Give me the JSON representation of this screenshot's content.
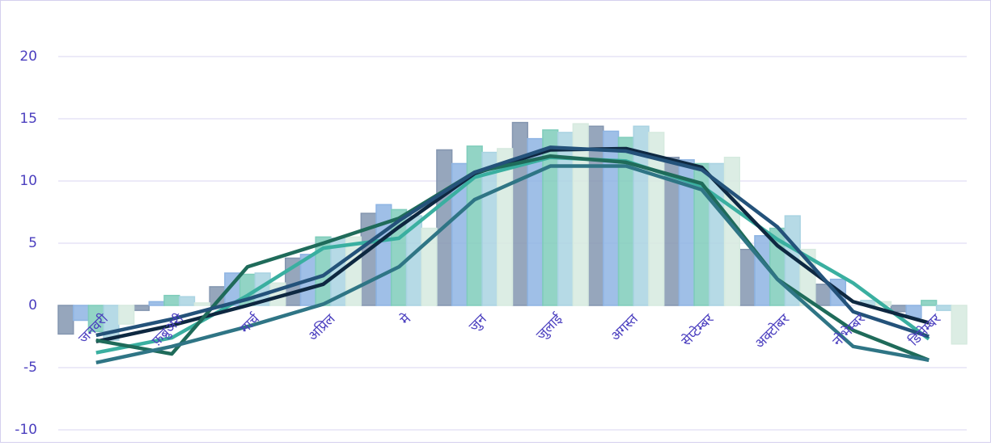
{
  "chart_data": {
    "type": "bar",
    "categories": [
      "जनवरी",
      "फ़ब्रुअरी",
      "मार्च",
      "अप्रिल",
      "मे",
      "जुन",
      "जुलाई",
      "अगस्त",
      "सेप्टेम्बर",
      "अक्टोबर",
      "नोभेम्बर",
      "डिसेम्बर"
    ],
    "ylim": [
      -10,
      20
    ],
    "yticks": [
      -10,
      -5,
      0,
      5,
      10,
      15,
      20
    ],
    "grid": true,
    "series": [
      {
        "type": "bar",
        "color": "#8496b0",
        "values": [
          -2.3,
          -0.4,
          1.5,
          3.8,
          7.4,
          12.5,
          14.7,
          14.4,
          11.9,
          4.5,
          1.7,
          -0.5
        ]
      },
      {
        "type": "bar",
        "color": "#8eb4e3",
        "values": [
          -1.2,
          0.3,
          2.6,
          4.1,
          8.1,
          11.4,
          13.4,
          14.0,
          11.7,
          5.6,
          2.1,
          -1.0
        ]
      },
      {
        "type": "bar",
        "color": "#7fcdbb",
        "values": [
          -2.1,
          0.8,
          2.5,
          5.5,
          7.7,
          12.8,
          14.1,
          13.5,
          11.4,
          6.2,
          0,
          0.4
        ]
      },
      {
        "type": "bar",
        "color": "#a9d3e2",
        "values": [
          -2.8,
          0.7,
          2.6,
          5.4,
          7.2,
          12.3,
          13.9,
          14.4,
          11.4,
          7.2,
          0.4,
          -0.4
        ]
      },
      {
        "type": "bar",
        "color": "#d6eadf",
        "values": [
          -1.5,
          0.2,
          1.8,
          5.5,
          6.2,
          12.6,
          14.6,
          13.9,
          11.9,
          4.5,
          0.3,
          -3.1
        ]
      },
      {
        "type": "line",
        "color": "#3aafa0",
        "values": [
          -3.8,
          -2.6,
          0.8,
          4.6,
          5.4,
          10.3,
          11.9,
          11.6,
          9.6,
          5.3,
          1.8,
          -2.7
        ]
      },
      {
        "type": "line",
        "color": "#0e2841",
        "values": [
          -2.9,
          -1.6,
          0,
          1.7,
          6.3,
          10.6,
          12.5,
          12.6,
          11.1,
          4.8,
          0.3,
          -1.4
        ]
      },
      {
        "type": "line",
        "color": "#1f6b5a",
        "values": [
          -2.8,
          -3.9,
          3.1,
          5.0,
          7.0,
          10.7,
          12.0,
          11.5,
          9.8,
          2.1,
          -2.0,
          -4.4
        ]
      },
      {
        "type": "line",
        "color": "#24527a",
        "values": [
          -2.4,
          -1.1,
          0.5,
          2.4,
          6.8,
          10.7,
          12.7,
          12.4,
          10.9,
          6.3,
          -0.5,
          -2.5
        ]
      },
      {
        "type": "line",
        "color": "#2f7585",
        "values": [
          -4.6,
          -3.3,
          -1.7,
          0.1,
          3.1,
          8.5,
          11.2,
          11.2,
          9.3,
          2.1,
          -3.3,
          -4.4
        ]
      }
    ]
  }
}
